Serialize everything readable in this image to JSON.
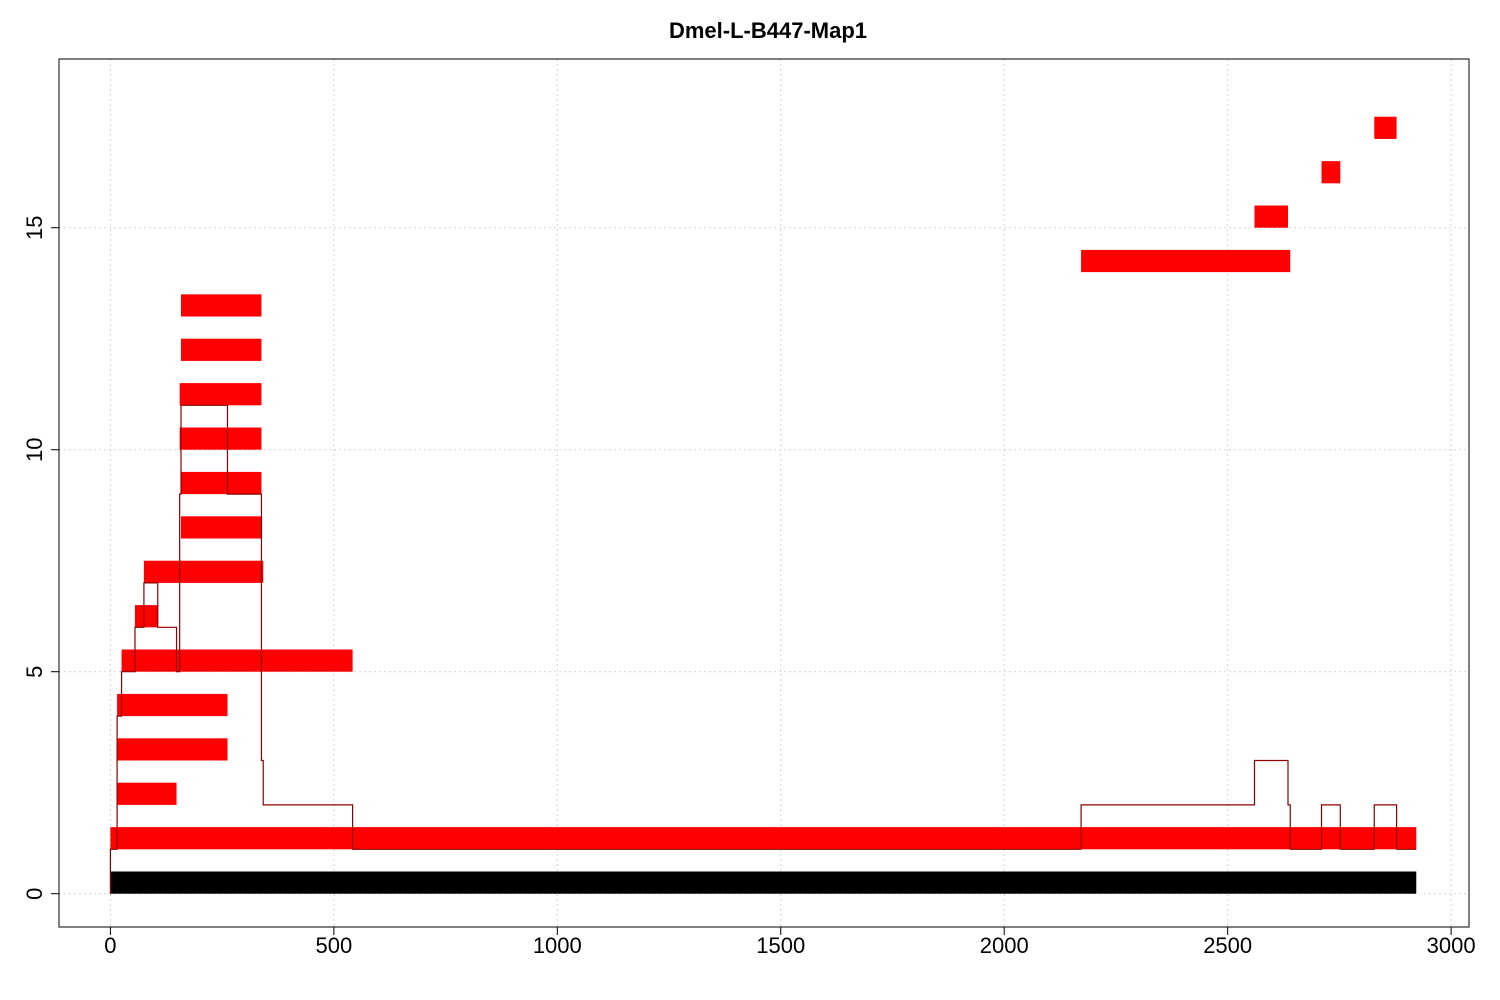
{
  "chart_data": {
    "type": "bar",
    "title": "Dmel-L-B447-Map1",
    "xlabel": "",
    "ylabel": "",
    "xlim": [
      -115,
      3040
    ],
    "ylim": [
      -0.75,
      18.8
    ],
    "x_ticks": [
      0,
      500,
      1000,
      1500,
      2000,
      2500,
      3000
    ],
    "y_ticks": [
      0,
      5,
      10,
      15
    ],
    "grid": true,
    "reference": {
      "start": 0,
      "end": 2922,
      "y0": 0,
      "y1": 0.5,
      "color": "#000000"
    },
    "reads_color": "#ff0000",
    "coverage_color": "#8b0000",
    "reads": [
      {
        "start": 0,
        "end": 2922,
        "level": 1
      },
      {
        "start": 15,
        "end": 148,
        "level": 2
      },
      {
        "start": 15,
        "end": 262,
        "level": 3
      },
      {
        "start": 15,
        "end": 262,
        "level": 4
      },
      {
        "start": 25,
        "end": 542,
        "level": 5
      },
      {
        "start": 55,
        "end": 106,
        "level": 6
      },
      {
        "start": 75,
        "end": 342,
        "level": 7
      },
      {
        "start": 158,
        "end": 338,
        "level": 8
      },
      {
        "start": 158,
        "end": 338,
        "level": 9
      },
      {
        "start": 155,
        "end": 338,
        "level": 10
      },
      {
        "start": 155,
        "end": 338,
        "level": 11
      },
      {
        "start": 158,
        "end": 338,
        "level": 12
      },
      {
        "start": 158,
        "end": 338,
        "level": 13
      },
      {
        "start": 2172,
        "end": 2640,
        "level": 14
      },
      {
        "start": 2560,
        "end": 2635,
        "level": 15
      },
      {
        "start": 2710,
        "end": 2752,
        "level": 16
      },
      {
        "start": 2828,
        "end": 2878,
        "level": 17
      }
    ],
    "coverage": {
      "x": [
        0,
        15,
        25,
        55,
        75,
        106,
        148,
        155,
        158,
        262,
        338,
        342,
        542,
        2172,
        2560,
        2635,
        2640,
        2710,
        2752,
        2828,
        2878,
        2922
      ],
      "y": [
        1,
        4,
        5,
        6,
        7,
        6,
        5,
        9,
        11,
        9,
        3,
        2,
        1,
        2,
        3,
        2,
        1,
        2,
        1,
        2,
        1,
        1
      ]
    }
  }
}
